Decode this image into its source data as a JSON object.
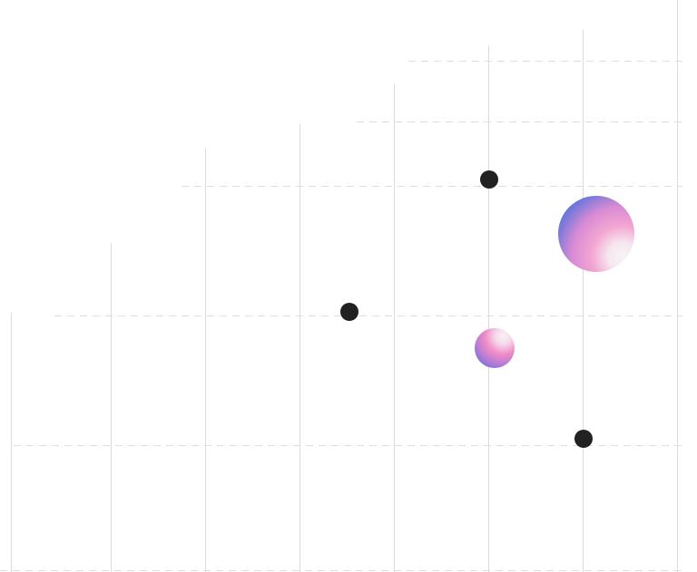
{
  "colors": {
    "background": "#ffffff",
    "grid_line": "#dcdcdc",
    "dashed_line": "#dedede",
    "dot": "#212121",
    "orb_blue": "#4e73d8",
    "orb_pink": "#f08cc6",
    "orb_white": "#f6f1f4"
  },
  "icons": {
    "dot": "black-dot-icon",
    "orb": "gradient-orb-icon"
  }
}
